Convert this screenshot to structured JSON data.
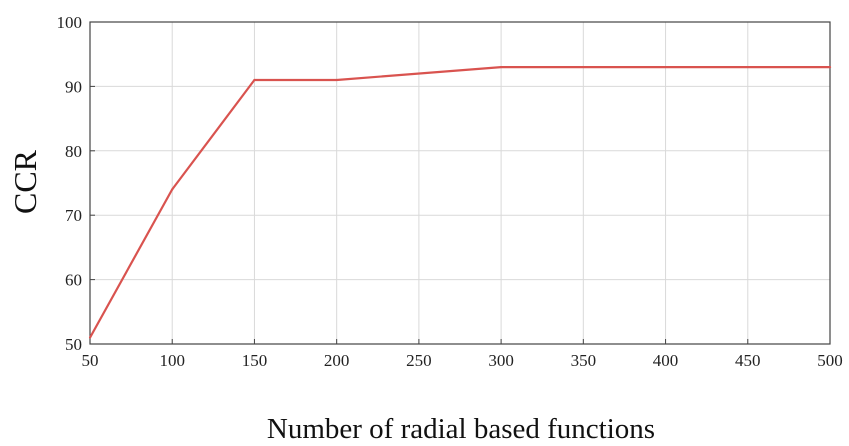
{
  "chart_data": {
    "type": "line",
    "title": "",
    "xlabel": "Number of radial based functions",
    "ylabel": "CCR",
    "xlim": [
      50,
      500
    ],
    "ylim": [
      50,
      100
    ],
    "x_ticks": [
      "50",
      "100",
      "150",
      "200",
      "250",
      "300",
      "350",
      "400",
      "450",
      "500"
    ],
    "y_ticks": [
      "50",
      "60",
      "70",
      "80",
      "90",
      "100"
    ],
    "grid": true,
    "series": [
      {
        "color": "#d9534f",
        "x": [
          50,
          100,
          150,
          200,
          300,
          500
        ],
        "y": [
          51,
          74,
          91,
          91,
          93,
          93
        ]
      }
    ]
  }
}
